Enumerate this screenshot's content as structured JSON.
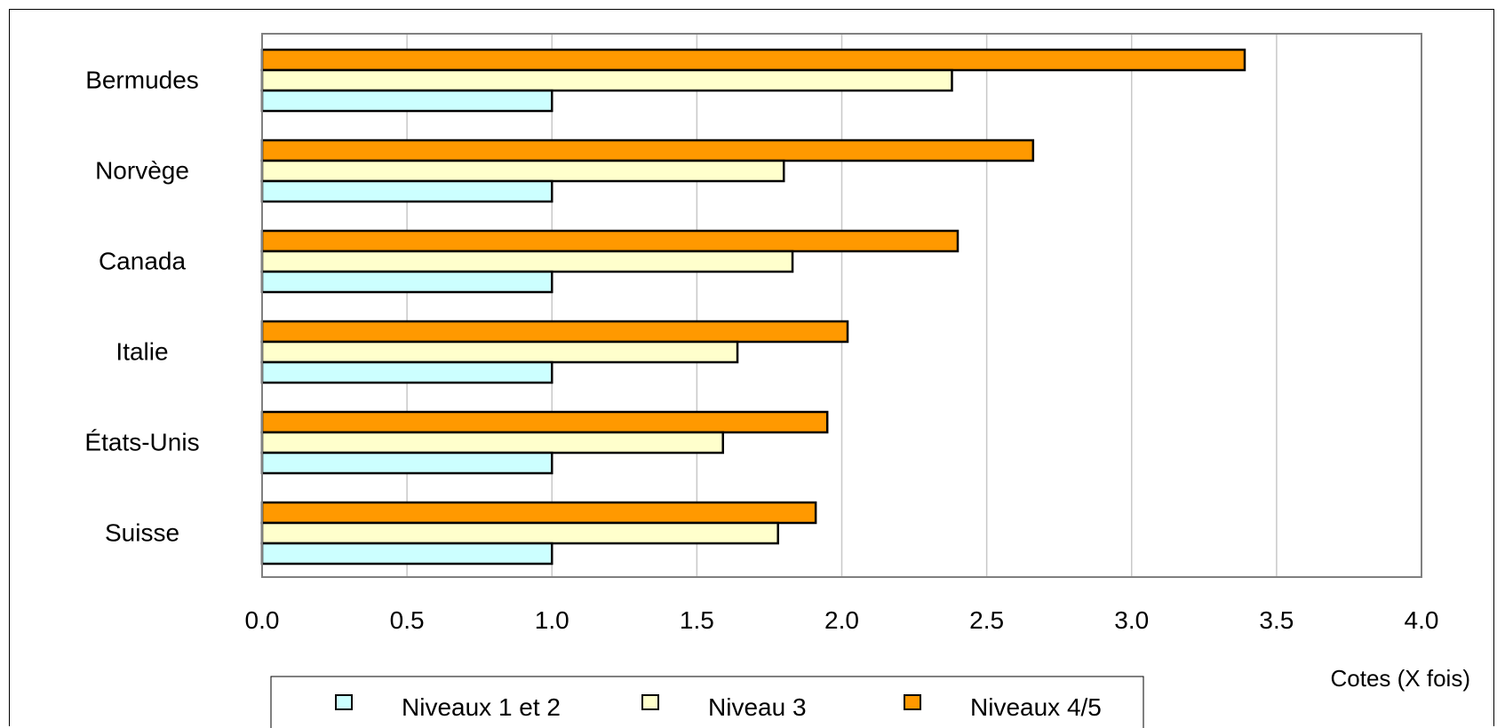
{
  "colors": {
    "background": "#ffffff",
    "gridline": "#c8c8c8",
    "plot_border": "#808080",
    "bar_outline": "#000000",
    "text": "#000000"
  },
  "chart_data": {
    "type": "bar",
    "orientation": "horizontal",
    "categories": [
      "Bermudes",
      "Norvège",
      "Canada",
      "Italie",
      "États-Unis",
      "Suisse"
    ],
    "series": [
      {
        "name": "Niveaux 1 et 2",
        "color": "#ccffff",
        "values": [
          1.0,
          1.0,
          1.0,
          1.0,
          1.0,
          1.0
        ]
      },
      {
        "name": "Niveau 3",
        "color": "#ffffcc",
        "values": [
          2.38,
          1.8,
          1.83,
          1.64,
          1.59,
          1.78
        ]
      },
      {
        "name": "Niveaux 4/5",
        "color": "#ff9900",
        "values": [
          3.39,
          2.66,
          2.4,
          2.02,
          1.95,
          1.91
        ]
      }
    ],
    "xlabel": "Cotes (X fois)",
    "xlim": [
      0,
      4
    ],
    "xticks": [
      "0.0",
      "0.5",
      "1.0",
      "1.5",
      "2.0",
      "2.5",
      "3.0",
      "3.5",
      "4.0"
    ],
    "grid": true,
    "legend_position": "bottom"
  }
}
